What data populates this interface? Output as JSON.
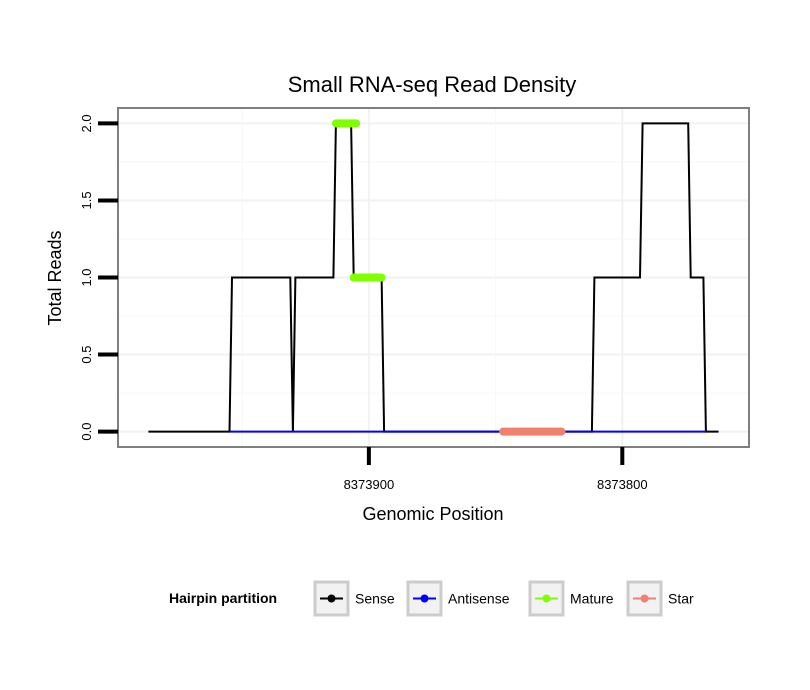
{
  "chart_data": {
    "type": "line",
    "title": "Small RNA-seq Read Density",
    "xlabel": "Genomic Position",
    "ylabel": "Total Reads",
    "x_reversed": true,
    "xlim": [
      8373999,
      8373750
    ],
    "ylim": [
      -0.1,
      2.1
    ],
    "x_ticks": [
      8373900,
      8373800
    ],
    "x_tick_labels": [
      "8373900",
      "8373800"
    ],
    "y_ticks": [
      0,
      0.5,
      1,
      1.5,
      2
    ],
    "y_tick_labels": [
      "0.0",
      "0.5",
      "1.0",
      "1.5",
      "2.0"
    ],
    "grid": true,
    "legend": {
      "title": "Hairpin partition",
      "position": "bottom",
      "entries": [
        {
          "name": "Sense",
          "color": "#000000"
        },
        {
          "name": "Antisense",
          "color": "#0000ff"
        },
        {
          "name": "Mature",
          "color": "#7fff00"
        },
        {
          "name": "Star",
          "color": "#f08070"
        }
      ]
    },
    "series": [
      {
        "name": "Sense",
        "color": "#000000",
        "points": [
          [
            8373987,
            0
          ],
          [
            8373955,
            0
          ],
          [
            8373954,
            1
          ],
          [
            8373931,
            1
          ],
          [
            8373930,
            0
          ],
          [
            8373930,
            0
          ],
          [
            8373929,
            1
          ],
          [
            8373914,
            1
          ],
          [
            8373913,
            2
          ],
          [
            8373907,
            2
          ],
          [
            8373906,
            1
          ],
          [
            8373895,
            1
          ],
          [
            8373894,
            0
          ],
          [
            8373812,
            0
          ],
          [
            8373811,
            1
          ],
          [
            8373793,
            1
          ],
          [
            8373792,
            2
          ],
          [
            8373774,
            2
          ],
          [
            8373773,
            1
          ],
          [
            8373768,
            1
          ],
          [
            8373767,
            0
          ],
          [
            8373762,
            0
          ]
        ]
      },
      {
        "name": "Antisense",
        "color": "#0000ff",
        "points": [
          [
            8373955,
            0
          ],
          [
            8373767,
            0
          ]
        ]
      },
      {
        "name": "Mature",
        "color": "#7fff00",
        "segments": [
          {
            "x_start": 8373913,
            "x_end": 8373905,
            "y": 2
          },
          {
            "x_start": 8373906,
            "x_end": 8373895,
            "y": 1
          }
        ]
      },
      {
        "name": "Star",
        "color": "#f08070",
        "segments": [
          {
            "x_start": 8373847,
            "x_end": 8373824,
            "y": 0
          }
        ]
      }
    ]
  }
}
